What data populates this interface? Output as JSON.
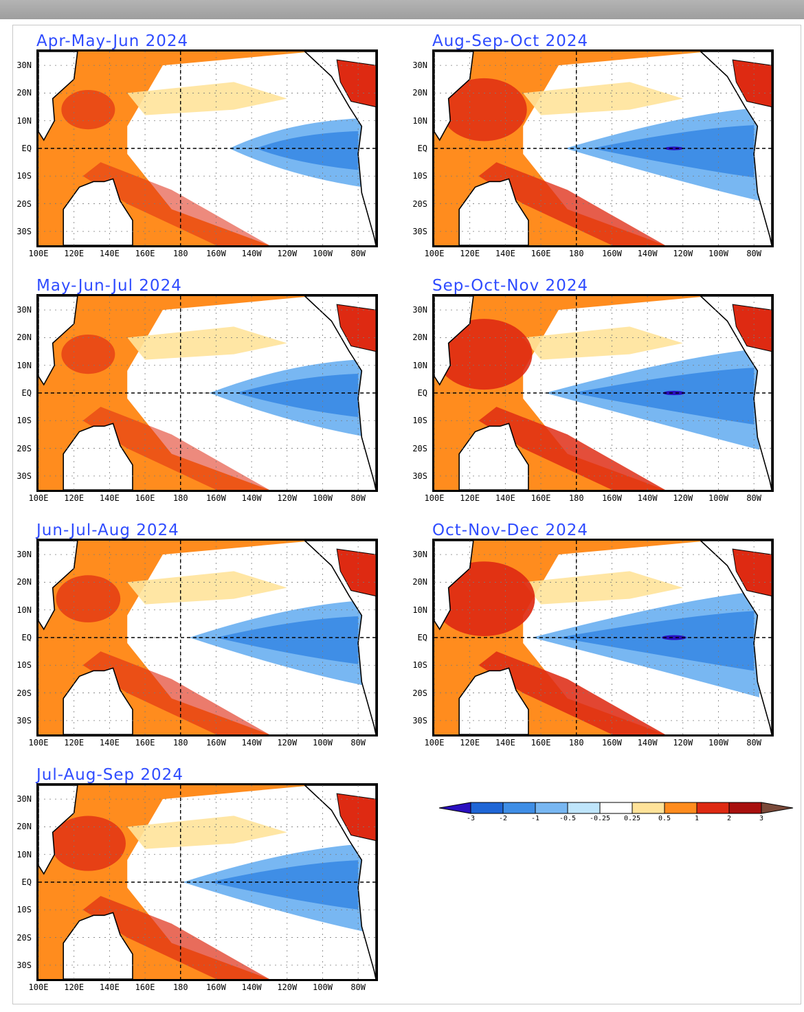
{
  "panels": [
    {
      "title": "Apr-May-Jun 2024",
      "warm_west": 1.0,
      "cold_east": 0.3
    },
    {
      "title": "May-Jun-Jul 2024",
      "warm_west": 1.0,
      "cold_east": 0.45
    },
    {
      "title": "Jun-Jul-Aug 2024",
      "warm_west": 1.2,
      "cold_east": 0.6
    },
    {
      "title": "Jul-Aug-Sep 2024",
      "warm_west": 1.4,
      "cold_east": 0.65
    },
    {
      "title": "Aug-Sep-Oct 2024",
      "warm_west": 1.6,
      "cold_east": 0.75
    },
    {
      "title": "Sep-Oct-Nov 2024",
      "warm_west": 1.8,
      "cold_east": 0.9
    },
    {
      "title": "Oct-Nov-Dec 2024",
      "warm_west": 1.9,
      "cold_east": 1.0
    }
  ],
  "axes": {
    "lat_labels": [
      "30N",
      "20N",
      "10N",
      "EQ",
      "10S",
      "20S",
      "30S"
    ],
    "lon_labels": [
      "100E",
      "120E",
      "140E",
      "160E",
      "180",
      "160W",
      "140W",
      "120W",
      "100W",
      "80W"
    ]
  },
  "colorbar": {
    "ticks": [
      "-3",
      "-2",
      "-1",
      "-0.5",
      "-0.25",
      "0.25",
      "0.5",
      "1",
      "2",
      "3"
    ],
    "colors": [
      "#2a0fbf",
      "#1f66d6",
      "#3f8ee6",
      "#78b7f2",
      "#bfe5fb",
      "#ffffff",
      "#ffe39a",
      "#ff8c1e",
      "#de2a12",
      "#a8100e",
      "#7a4a3a"
    ]
  },
  "palette": {
    "land": "#ffffff",
    "grid": "#7a7a7a",
    "coast": "#000000"
  }
}
